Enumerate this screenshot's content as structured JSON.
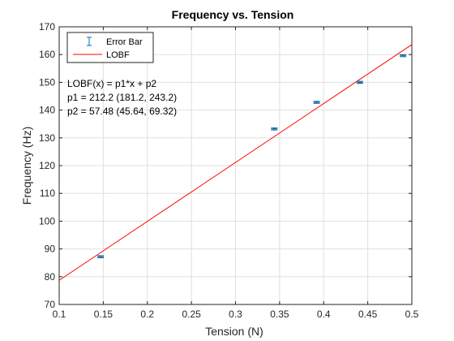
{
  "chart_data": {
    "type": "scatter",
    "title": "Frequency vs. Tension",
    "xlabel": "Tension (N)",
    "ylabel": "Frequency (Hz)",
    "xlim": [
      0.1,
      0.5
    ],
    "ylim": [
      70,
      170
    ],
    "xticks": [
      0.1,
      0.15,
      0.2,
      0.25,
      0.3,
      0.35,
      0.4,
      0.45,
      0.5
    ],
    "xtick_labels": [
      "0.1",
      "0.15",
      "0.2",
      "0.25",
      "0.3",
      "0.35",
      "0.4",
      "0.45",
      "0.5"
    ],
    "yticks": [
      70,
      80,
      90,
      100,
      110,
      120,
      130,
      140,
      150,
      160,
      170
    ],
    "ytick_labels": [
      "70",
      "80",
      "90",
      "100",
      "110",
      "120",
      "130",
      "140",
      "150",
      "160",
      "170"
    ],
    "grid": true,
    "legend_position": "top-left",
    "series": [
      {
        "name": "Error Bar",
        "kind": "errorbar",
        "color": "#0072bd",
        "x": [
          0.147,
          0.344,
          0.392,
          0.441,
          0.49
        ],
        "y": [
          87.2,
          133.2,
          142.8,
          150.0,
          159.6
        ],
        "err": [
          0.35,
          0.35,
          0.35,
          0.35,
          0.35
        ]
      },
      {
        "name": "LOBF",
        "kind": "line",
        "color": "#ff0000",
        "slope": 212.2,
        "intercept": 57.48
      }
    ],
    "annotations": [
      "LOBF(x) = p1*x + p2",
      "p1 = 212.2  (181.2, 243.2)",
      "p2 = 57.48  (45.64, 69.32)"
    ]
  }
}
